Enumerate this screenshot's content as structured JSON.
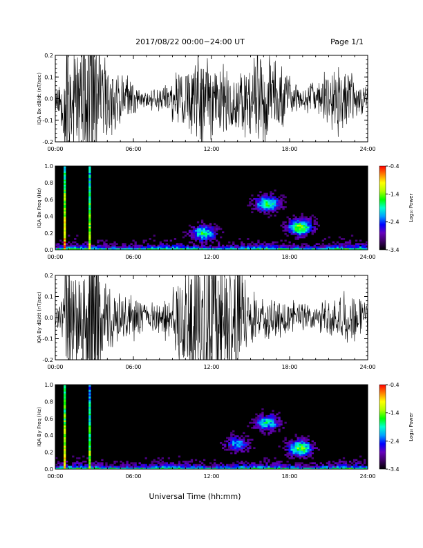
{
  "header": {
    "title": "2017/08/22   00:00−24:00 UT",
    "page": "Page 1/1"
  },
  "footer": {
    "xlabel": "Universal Time (hh:mm)"
  },
  "colors": {
    "trace": "#000000",
    "colormap": [
      "#000000",
      "#3a0060",
      "#6600bb",
      "#0000ff",
      "#00a0ff",
      "#00ffd0",
      "#00ff00",
      "#b0ff00",
      "#ffff00",
      "#ff8000",
      "#ff0000"
    ]
  },
  "chart_data": [
    {
      "type": "line",
      "name": "IQA Bx dB/dt",
      "ylabel": "IQA Bx dB/dt (nT/sec)",
      "x_ticks": [
        "00:00",
        "06:00",
        "12:00",
        "18:00",
        "24:00"
      ],
      "xlim": [
        0,
        24
      ],
      "ylim": [
        -0.2,
        0.2
      ],
      "y_ticks": [
        "-0.2",
        "-0.1",
        "0.0",
        "0.1",
        "0.2"
      ],
      "amplitude_envelope": {
        "x_hours": [
          0,
          0.5,
          0.9,
          1.2,
          1.6,
          2.0,
          2.5,
          3.0,
          3.5,
          4.0,
          5.0,
          6.0,
          7.0,
          8.0,
          9.0,
          10.0,
          10.5,
          11.0,
          11.5,
          12.0,
          12.5,
          13.0,
          14.0,
          15.0,
          16.0,
          17.0,
          18.0,
          19.0,
          20.0,
          21.0,
          22.0,
          23.0,
          24.0
        ],
        "amplitude": [
          0.08,
          0.15,
          0.5,
          0.35,
          0.3,
          0.3,
          0.5,
          0.4,
          0.3,
          0.2,
          0.15,
          0.1,
          0.05,
          0.07,
          0.12,
          0.2,
          0.22,
          0.3,
          0.25,
          0.2,
          0.18,
          0.25,
          0.2,
          0.22,
          0.3,
          0.2,
          0.12,
          0.08,
          0.1,
          0.15,
          0.2,
          0.12,
          0.08
        ]
      }
    },
    {
      "type": "heatmap",
      "name": "IQA Bx spectrogram",
      "ylabel": "IQA Bx Freq (Hz)",
      "x_ticks": [
        "00:00",
        "06:00",
        "12:00",
        "18:00",
        "24:00"
      ],
      "xlim": [
        0,
        24
      ],
      "ylim": [
        0,
        1.0
      ],
      "y_ticks": [
        "0.0",
        "0.2",
        "0.4",
        "0.6",
        "0.8",
        "1.0"
      ],
      "colorbar": {
        "label": "Log₁₀ Power",
        "range": [
          -3.4,
          -0.4
        ],
        "ticks": [
          "-0.4",
          "-1.4",
          "-2.4",
          "-3.4"
        ]
      },
      "features": [
        {
          "x_hours": 0.7,
          "freq_max": 1.0,
          "level": 0.9
        },
        {
          "x_hours": 2.6,
          "freq_max": 1.0,
          "level": 0.75
        },
        {
          "x_center": 11.4,
          "freq_peak": 0.2,
          "level": 0.55
        },
        {
          "x_center": 16.3,
          "freq_peak": 0.55,
          "level": 0.6
        },
        {
          "x_center": 18.8,
          "freq_peak": 0.27,
          "level": 0.7
        }
      ]
    },
    {
      "type": "line",
      "name": "IQA By dB/dt",
      "ylabel": "IQA By dB/dt (nT/sec)",
      "x_ticks": [
        "00:00",
        "06:00",
        "12:00",
        "18:00",
        "24:00"
      ],
      "xlim": [
        0,
        24
      ],
      "ylim": [
        -0.2,
        0.2
      ],
      "y_ticks": [
        "-0.2",
        "-0.1",
        "0.0",
        "0.1",
        "0.2"
      ],
      "amplitude_envelope": {
        "x_hours": [
          0,
          0.5,
          0.9,
          1.2,
          1.6,
          2.0,
          2.5,
          3.0,
          3.5,
          4.0,
          5.0,
          6.0,
          7.0,
          8.0,
          9.0,
          10.0,
          10.5,
          11.0,
          11.5,
          12.0,
          12.5,
          13.0,
          14.0,
          15.0,
          16.0,
          17.0,
          18.0,
          19.0,
          20.0,
          21.0,
          22.0,
          23.0,
          24.0
        ],
        "amplitude": [
          0.07,
          0.12,
          0.5,
          0.4,
          0.3,
          0.32,
          0.5,
          0.45,
          0.3,
          0.2,
          0.15,
          0.12,
          0.08,
          0.09,
          0.15,
          0.3,
          0.35,
          0.4,
          0.5,
          0.5,
          0.5,
          0.4,
          0.35,
          0.15,
          0.12,
          0.1,
          0.1,
          0.08,
          0.06,
          0.1,
          0.15,
          0.12,
          0.1
        ]
      }
    },
    {
      "type": "heatmap",
      "name": "IQA By spectrogram",
      "ylabel": "IQA By Freq (Hz)",
      "x_ticks": [
        "00:00",
        "06:00",
        "12:00",
        "18:00",
        "24:00"
      ],
      "xlim": [
        0,
        24
      ],
      "ylim": [
        0,
        1.0
      ],
      "y_ticks": [
        "0.0",
        "0.2",
        "0.4",
        "0.6",
        "0.8",
        "1.0"
      ],
      "colorbar": {
        "label": "Log₁₀ Power",
        "range": [
          -3.4,
          -0.4
        ],
        "ticks": [
          "-0.4",
          "-1.4",
          "-2.4",
          "-3.4"
        ]
      },
      "features": [
        {
          "x_hours": 0.7,
          "freq_max": 1.0,
          "level": 0.85
        },
        {
          "x_hours": 2.6,
          "freq_max": 1.0,
          "level": 0.7
        },
        {
          "x_center": 14.0,
          "freq_peak": 0.3,
          "level": 0.4
        },
        {
          "x_center": 16.3,
          "freq_peak": 0.55,
          "level": 0.5
        },
        {
          "x_center": 18.8,
          "freq_peak": 0.25,
          "level": 0.65
        }
      ]
    }
  ]
}
